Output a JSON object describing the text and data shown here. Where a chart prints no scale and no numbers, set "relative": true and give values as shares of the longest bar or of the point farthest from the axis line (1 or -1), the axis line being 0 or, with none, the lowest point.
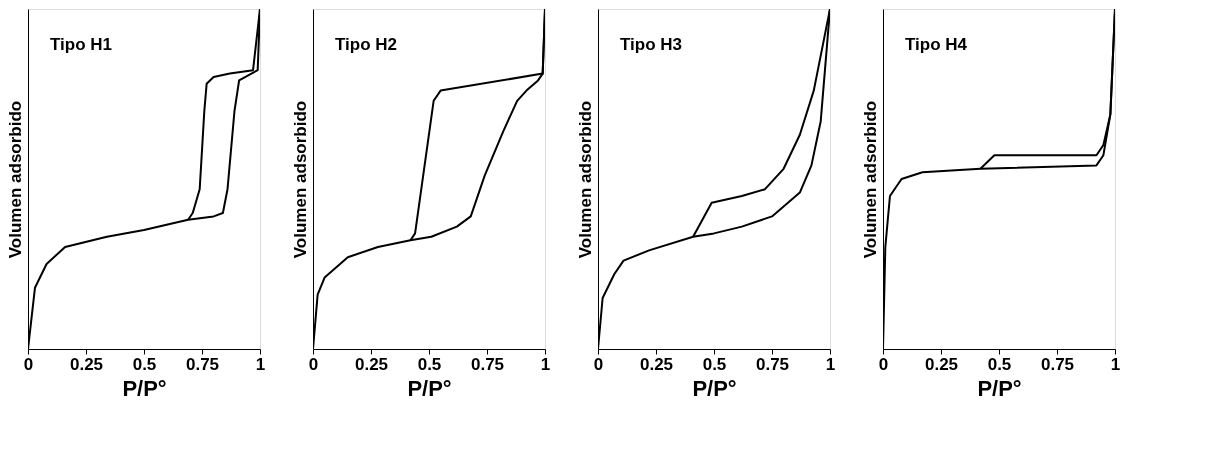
{
  "chart_data": [
    {
      "type": "line",
      "title": "Tipo H1",
      "xlabel": "P/P°",
      "ylabel": "Volumen adsorbido",
      "relative": true,
      "xlim": [
        0,
        1
      ],
      "xticks": [
        0,
        0.25,
        0.5,
        0.75,
        1
      ],
      "tick_labels": "x",
      "line_style": "solid",
      "series": [
        {
          "color": "#000000",
          "x": [
            0,
            0.03,
            0.08,
            0.16,
            0.34,
            0.5,
            0.69,
            0.8,
            0.84,
            0.86,
            0.89,
            0.91,
            0.99,
            1
          ],
          "values": [
            0,
            0.18,
            0.25,
            0.3,
            0.33,
            0.35,
            0.38,
            0.39,
            0.4,
            0.47,
            0.7,
            0.79,
            0.82,
            1
          ]
        },
        {
          "color": "#000000",
          "x": [
            0.69,
            0.71,
            0.74,
            0.76,
            0.77,
            0.8,
            0.87,
            0.97,
            1
          ],
          "values": [
            0.38,
            0.4,
            0.47,
            0.7,
            0.78,
            0.8,
            0.81,
            0.82,
            1
          ]
        }
      ]
    },
    {
      "type": "line",
      "title": "Tipo H2",
      "xlabel": "P/P°",
      "ylabel": "Volumen adsorbido",
      "relative": true,
      "xlim": [
        0,
        1
      ],
      "xticks": [
        0,
        0.25,
        0.5,
        0.75,
        1
      ],
      "tick_labels": "x",
      "line_style": "solid",
      "series": [
        {
          "color": "#000000",
          "x": [
            0,
            0.02,
            0.05,
            0.15,
            0.28,
            0.42,
            0.51,
            0.62,
            0.68,
            0.74,
            0.82,
            0.88,
            0.92,
            0.97,
            0.99,
            1
          ],
          "values": [
            0,
            0.16,
            0.21,
            0.27,
            0.3,
            0.32,
            0.33,
            0.36,
            0.39,
            0.51,
            0.64,
            0.73,
            0.76,
            0.79,
            0.81,
            1
          ]
        },
        {
          "color": "#000000",
          "x": [
            0.42,
            0.44,
            0.52,
            0.55,
            0.99,
            1
          ],
          "values": [
            0.32,
            0.34,
            0.73,
            0.76,
            0.81,
            1
          ]
        }
      ]
    },
    {
      "type": "line",
      "title": "Tipo H3",
      "xlabel": "P/P°",
      "ylabel": "Volumen adsorbido",
      "relative": true,
      "xlim": [
        0,
        1
      ],
      "xticks": [
        0,
        0.25,
        0.5,
        0.75,
        1
      ],
      "tick_labels": "x",
      "line_style": "solid",
      "series": [
        {
          "color": "#000000",
          "x": [
            0,
            0.02,
            0.07,
            0.11,
            0.22,
            0.41,
            0.5,
            0.62,
            0.75,
            0.87,
            0.92,
            0.96,
            1
          ],
          "values": [
            0,
            0.15,
            0.22,
            0.26,
            0.29,
            0.33,
            0.34,
            0.36,
            0.39,
            0.46,
            0.54,
            0.67,
            1
          ]
        },
        {
          "color": "#000000",
          "x": [
            0.41,
            0.45,
            0.49,
            0.62,
            0.72,
            0.8,
            0.87,
            0.93,
            1
          ],
          "values": [
            0.33,
            0.38,
            0.43,
            0.45,
            0.47,
            0.53,
            0.63,
            0.76,
            1
          ]
        }
      ]
    },
    {
      "type": "line",
      "title": "Tipo H4",
      "xlabel": "P/P°",
      "ylabel": "Volumen adsorbido",
      "relative": true,
      "xlim": [
        0,
        1
      ],
      "xticks": [
        0,
        0.25,
        0.5,
        0.75,
        1
      ],
      "tick_labels": "x",
      "line_style": "solid",
      "series": [
        {
          "color": "#000000",
          "x": [
            0,
            0.01,
            0.03,
            0.08,
            0.17,
            0.42,
            0.92,
            0.95,
            0.98,
            1
          ],
          "values": [
            0,
            0.3,
            0.45,
            0.5,
            0.52,
            0.53,
            0.54,
            0.57,
            0.69,
            1
          ]
        },
        {
          "color": "#000000",
          "x": [
            0.42,
            0.45,
            0.48,
            0.92,
            0.95,
            0.98,
            1
          ],
          "values": [
            0.53,
            0.55,
            0.57,
            0.57,
            0.6,
            0.69,
            1
          ]
        }
      ]
    }
  ]
}
